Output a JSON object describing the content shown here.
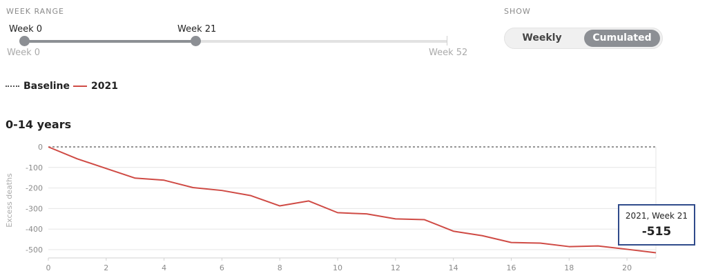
{
  "controls": {
    "week_range_label": "WEEK RANGE",
    "show_label": "SHOW",
    "slider": {
      "start_label": "Week 0",
      "end_label": "Week 21",
      "min_label": "Week 0",
      "max_label": "Week 52",
      "start_value": 0,
      "end_value": 21,
      "min": 0,
      "max": 52
    },
    "toggle": {
      "weekly_label": "Weekly",
      "cumulated_label": "Cumulated",
      "selected": "Cumulated"
    }
  },
  "legend": {
    "baseline_label": "Baseline",
    "series_label": "2021"
  },
  "tooltip": {
    "title": "2021, Week 21",
    "value": "-515"
  },
  "colors": {
    "series": "#cf4a44",
    "baseline": "#555555",
    "accent": "#8c8f94",
    "tooltip_border": "#2f4a8a"
  },
  "chart_data": {
    "type": "line",
    "title": "0-14 years",
    "xlabel": "",
    "ylabel": "Excess deaths",
    "xlim": [
      0,
      21
    ],
    "ylim": [
      -520,
      0
    ],
    "xticks": [
      0,
      2,
      4,
      6,
      8,
      10,
      12,
      14,
      16,
      18,
      20
    ],
    "yticks": [
      0,
      -100,
      -200,
      -300,
      -400,
      -500
    ],
    "grid": true,
    "series": [
      {
        "name": "2021",
        "x": [
          0,
          1,
          2,
          3,
          4,
          5,
          6,
          7,
          8,
          9,
          10,
          11,
          12,
          13,
          14,
          15,
          16,
          17,
          18,
          19,
          20,
          21
        ],
        "values": [
          0,
          -58,
          -105,
          -152,
          -162,
          -198,
          -212,
          -237,
          -287,
          -263,
          -320,
          -326,
          -350,
          -354,
          -410,
          -432,
          -465,
          -468,
          -485,
          -482,
          -498,
          -515
        ]
      }
    ],
    "baseline": {
      "name": "Baseline",
      "value": 0
    }
  }
}
